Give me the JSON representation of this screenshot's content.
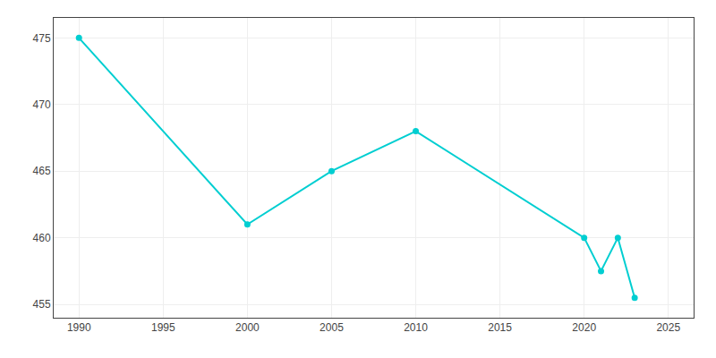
{
  "chart_data": {
    "type": "line",
    "x": [
      1990,
      2000,
      2005,
      2010,
      2020,
      2021,
      2022,
      2023
    ],
    "values": [
      475,
      461,
      465,
      468,
      460,
      457.5,
      460,
      455.5
    ],
    "color": "#00CED1",
    "marker": "circle",
    "xlim": [
      1988.5,
      2026.5
    ],
    "ylim": [
      454.0,
      476.5
    ],
    "xticks": [
      1990,
      1995,
      2000,
      2005,
      2010,
      2015,
      2020,
      2025
    ],
    "yticks": [
      455,
      460,
      465,
      470,
      475
    ],
    "grid": true
  }
}
